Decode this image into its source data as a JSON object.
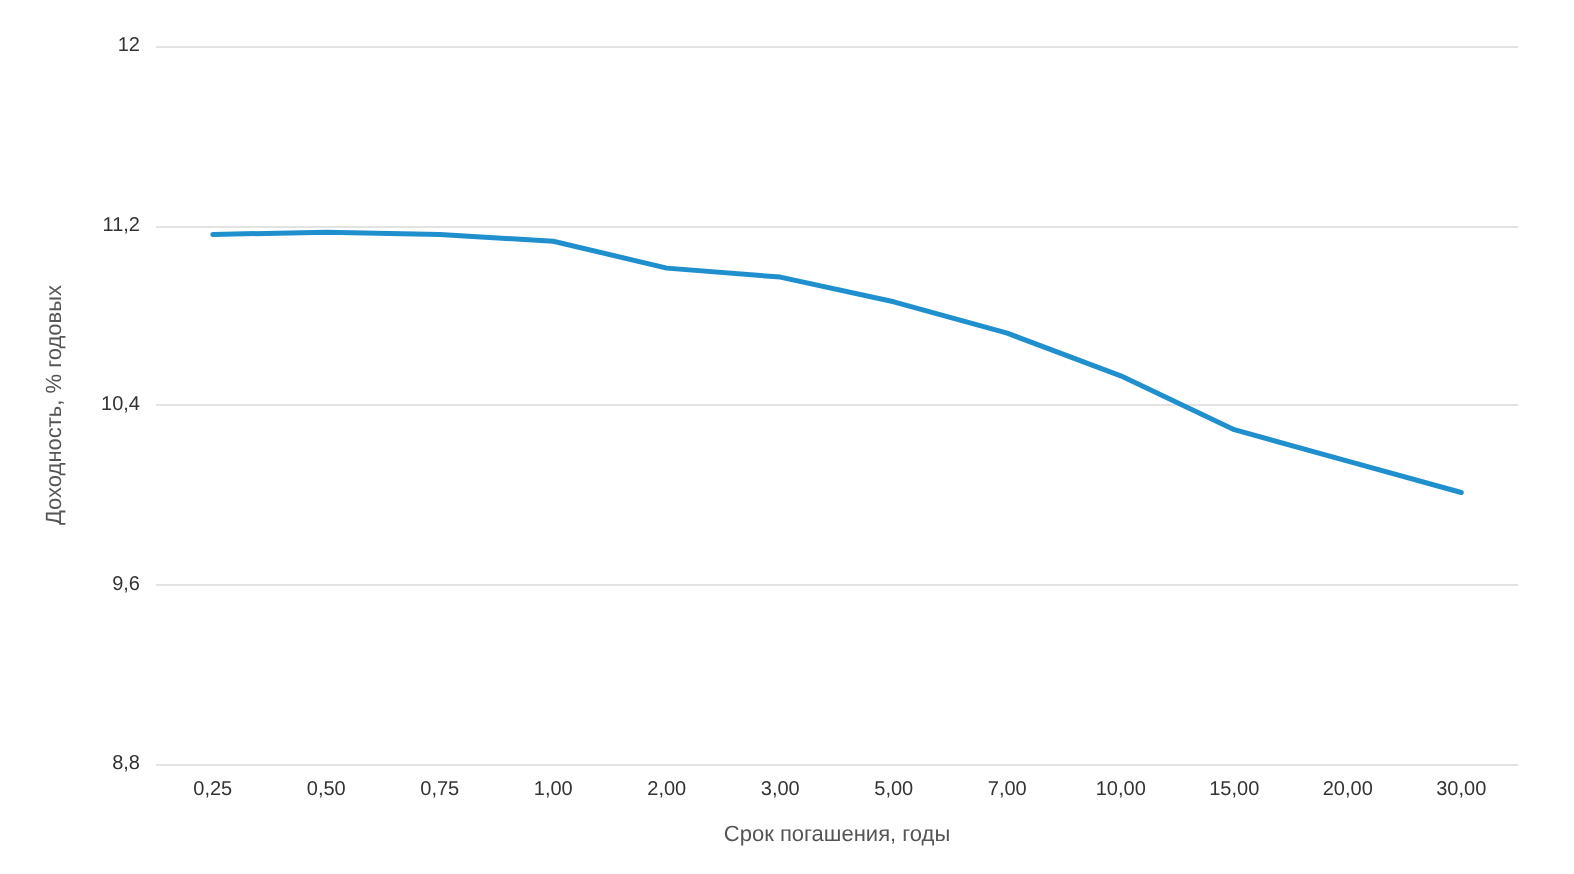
{
  "chart_data": {
    "type": "line",
    "xlabel": "Срок погашения, годы",
    "ylabel": "Доходность, % годовых",
    "categories": [
      "0,25",
      "0,50",
      "0,75",
      "1,00",
      "2,00",
      "3,00",
      "5,00",
      "7,00",
      "10,00",
      "15,00",
      "20,00",
      "30,00"
    ],
    "series": [
      {
        "color": "#1f8fce",
        "values": [
          11.16,
          11.17,
          11.16,
          11.13,
          11.01,
          10.97,
          10.86,
          10.72,
          10.53,
          10.29,
          10.15,
          10.01
        ]
      }
    ],
    "ylim": [
      8.8,
      12
    ],
    "yticks": [
      {
        "value": 8.8,
        "label": "8,8"
      },
      {
        "value": 9.6,
        "label": "9,6"
      },
      {
        "value": 10.4,
        "label": "10,4"
      },
      {
        "value": 11.2,
        "label": "11,2"
      },
      {
        "value": 12,
        "label": "12"
      }
    ],
    "grid": "y",
    "marker": "none",
    "line_style": "solid"
  }
}
